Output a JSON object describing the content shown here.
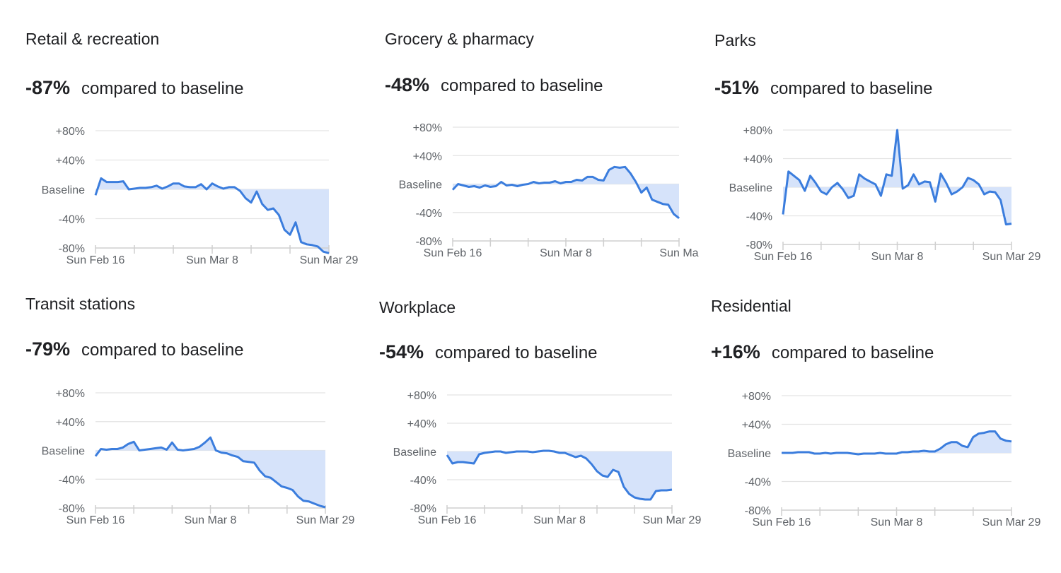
{
  "chart_data": [
    {
      "type": "area",
      "title": "Retail & recreation",
      "headline_value": "-87%",
      "headline_text": "compared to baseline",
      "yticks": [
        "+80%",
        "+40%",
        "Baseline",
        "-40%",
        "-80%"
      ],
      "xticks": [
        "Sun Feb 16",
        "Sun Mar 8",
        "Sun Mar 29"
      ],
      "ylim": [
        -80,
        80
      ],
      "values": [
        -8,
        15,
        10,
        10,
        10,
        11,
        0,
        1,
        2,
        2,
        3,
        5,
        1,
        4,
        8,
        8,
        4,
        3,
        3,
        7,
        0,
        8,
        4,
        1,
        3,
        3,
        -2,
        -12,
        -18,
        -3,
        -20,
        -28,
        -26,
        -35,
        -55,
        -62,
        -45,
        -72,
        -75,
        -76,
        -78,
        -85,
        -87
      ]
    },
    {
      "type": "area",
      "title": "Grocery & pharmacy",
      "headline_value": "-48%",
      "headline_text": "compared to baseline",
      "yticks": [
        "+80%",
        "+40%",
        "Baseline",
        "-40%",
        "-80%"
      ],
      "xticks": [
        "Sun Feb 16",
        "Sun Mar 8",
        "Sun Ma"
      ],
      "ylim": [
        -80,
        80
      ],
      "values": [
        -8,
        0,
        -2,
        -4,
        -3,
        -5,
        -2,
        -4,
        -3,
        3,
        -2,
        -1,
        -3,
        -1,
        0,
        3,
        1,
        2,
        2,
        4,
        1,
        3,
        3,
        6,
        5,
        10,
        10,
        6,
        5,
        20,
        24,
        23,
        24,
        15,
        3,
        -12,
        -5,
        -22,
        -25,
        -28,
        -29,
        -42,
        -48
      ]
    },
    {
      "type": "area",
      "title": "Parks",
      "headline_value": "-51%",
      "headline_text": "compared to baseline",
      "yticks": [
        "+80%",
        "+40%",
        "Baseline",
        "-40%",
        "-80%"
      ],
      "xticks": [
        "Sun Feb 16",
        "Sun Mar 8",
        "Sun Mar 29"
      ],
      "ylim": [
        -80,
        80
      ],
      "values": [
        -38,
        22,
        16,
        10,
        -5,
        16,
        6,
        -6,
        -10,
        0,
        6,
        -3,
        -15,
        -12,
        18,
        12,
        8,
        4,
        -12,
        18,
        16,
        80,
        -2,
        3,
        18,
        4,
        8,
        7,
        -20,
        19,
        6,
        -10,
        -6,
        0,
        13,
        10,
        4,
        -10,
        -6,
        -7,
        -18,
        -52,
        -51
      ]
    },
    {
      "type": "area",
      "title": "Transit stations",
      "headline_value": "-79%",
      "headline_text": "compared to baseline",
      "yticks": [
        "+80%",
        "+40%",
        "Baseline",
        "-40%",
        "-80%"
      ],
      "xticks": [
        "Sun Feb 16",
        "Sun Mar 8",
        "Sun Mar 29"
      ],
      "ylim": [
        -80,
        80
      ],
      "values": [
        -8,
        2,
        1,
        2,
        2,
        4,
        9,
        12,
        0,
        1,
        2,
        3,
        4,
        1,
        11,
        1,
        0,
        1,
        2,
        5,
        11,
        18,
        0,
        -3,
        -4,
        -7,
        -9,
        -15,
        -16,
        -17,
        -28,
        -36,
        -38,
        -44,
        -50,
        -52,
        -55,
        -64,
        -70,
        -71,
        -74,
        -77,
        -79
      ]
    },
    {
      "type": "area",
      "title": "Workplace",
      "headline_value": "-54%",
      "headline_text": "compared to baseline",
      "yticks": [
        "+80%",
        "+40%",
        "Baseline",
        "-40%",
        "-80%"
      ],
      "xticks": [
        "Sun Feb 16",
        "Sun Mar 8",
        "Sun Mar 29"
      ],
      "ylim": [
        -80,
        80
      ],
      "values": [
        -5,
        -17,
        -15,
        -15,
        -16,
        -17,
        -4,
        -2,
        -1,
        0,
        0,
        -2,
        -1,
        0,
        0,
        0,
        -1,
        0,
        1,
        1,
        0,
        -2,
        -2,
        -5,
        -8,
        -6,
        -10,
        -18,
        -28,
        -34,
        -36,
        -26,
        -29,
        -50,
        -60,
        -65,
        -67,
        -68,
        -68,
        -56,
        -55,
        -55,
        -54
      ]
    },
    {
      "type": "area",
      "title": "Residential",
      "headline_value": "+16%",
      "headline_text": "compared to baseline",
      "yticks": [
        "+80%",
        "+40%",
        "Baseline",
        "-40%",
        "-80%"
      ],
      "xticks": [
        "Sun Feb 16",
        "Sun Mar 8",
        "Sun Mar 29"
      ],
      "ylim": [
        -80,
        80
      ],
      "values": [
        0,
        0,
        0,
        1,
        1,
        1,
        -1,
        -1,
        0,
        -1,
        0,
        0,
        0,
        -1,
        -2,
        -1,
        -1,
        -1,
        0,
        -1,
        -1,
        -1,
        1,
        1,
        2,
        2,
        3,
        2,
        2,
        6,
        12,
        15,
        15,
        10,
        8,
        22,
        27,
        28,
        30,
        30,
        20,
        17,
        16
      ]
    }
  ],
  "colors": {
    "line": "#3b7ddd",
    "fill": "#d6e3fa"
  }
}
